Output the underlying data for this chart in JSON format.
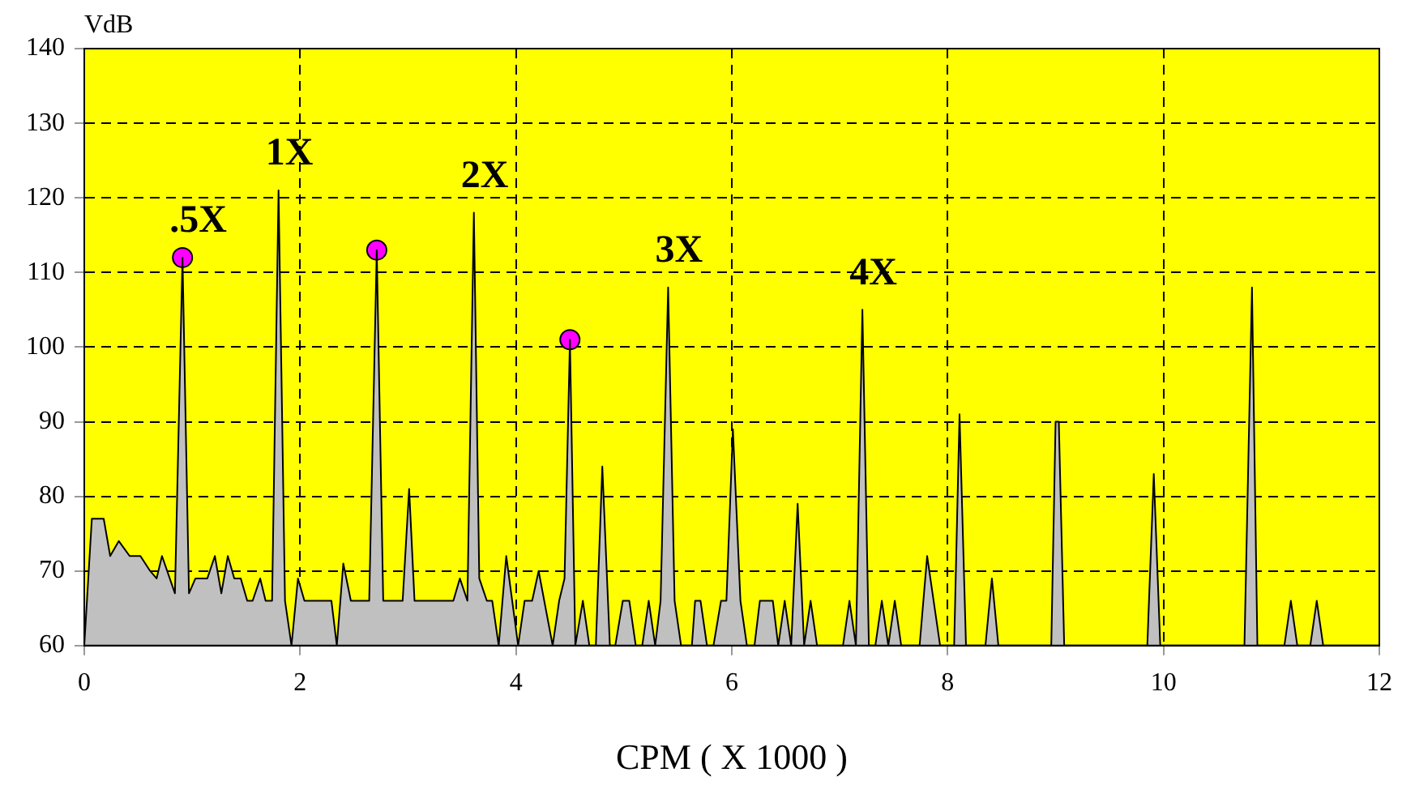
{
  "chart_data": {
    "type": "area",
    "xlabel": "CPM ( X 1000 )",
    "ylabel": "VdB",
    "xlim": [
      0,
      12
    ],
    "xticks": [
      0,
      2,
      4,
      6,
      8,
      10,
      12
    ],
    "ylim": [
      60,
      140
    ],
    "yticks": [
      60,
      70,
      80,
      90,
      100,
      110,
      120,
      130,
      140
    ],
    "grid": true,
    "legend": false,
    "series": [
      {
        "color": "#c0c0c0",
        "x": [
          0,
          0.07,
          0.18,
          0.24,
          0.32,
          0.42,
          0.52,
          0.61,
          0.67,
          0.72,
          0.84,
          0.91,
          0.97,
          1.03,
          1.14,
          1.21,
          1.27,
          1.33,
          1.39,
          1.45,
          1.51,
          1.56,
          1.63,
          1.68,
          1.74,
          1.8,
          1.86,
          1.92,
          1.98,
          2.04,
          2.29,
          2.34,
          2.4,
          2.47,
          2.64,
          2.71,
          2.77,
          2.95,
          3.01,
          3.06,
          3.42,
          3.48,
          3.55,
          3.61,
          3.66,
          3.73,
          3.78,
          3.84,
          3.91,
          4.02,
          4.08,
          4.15,
          4.21,
          4.34,
          4.4,
          4.45,
          4.5,
          4.55,
          4.62,
          4.68,
          4.74,
          4.8,
          4.87,
          4.92,
          4.99,
          5.05,
          5.11,
          5.17,
          5.23,
          5.29,
          5.34,
          5.41,
          5.47,
          5.53,
          5.63,
          5.66,
          5.71,
          5.77,
          5.83,
          5.9,
          5.95,
          6.01,
          6.08,
          6.14,
          6.21,
          6.26,
          6.38,
          6.43,
          6.49,
          6.55,
          6.61,
          6.67,
          6.73,
          6.79,
          7.03,
          7.09,
          7.15,
          7.21,
          7.27,
          7.33,
          7.39,
          7.45,
          7.51,
          7.57,
          7.74,
          7.81,
          7.93,
          8.06,
          8.11,
          8.17,
          8.35,
          8.41,
          8.47,
          8.96,
          9,
          9.03,
          9.08,
          9.85,
          9.91,
          9.97,
          10.75,
          10.82,
          10.87,
          11.12,
          11.18,
          11.24,
          11.36,
          11.42,
          11.48,
          12
        ],
        "values": [
          60,
          77,
          77,
          72,
          74,
          72,
          72,
          70,
          69,
          72,
          67,
          112,
          67,
          69,
          69,
          72,
          67,
          72,
          69,
          69,
          66,
          66,
          69,
          66,
          66,
          121,
          66,
          60,
          69,
          66,
          66,
          60,
          71,
          66,
          66,
          113,
          66,
          66,
          81,
          66,
          66,
          69,
          66,
          118,
          69,
          66,
          66,
          60,
          72,
          60,
          66,
          66,
          70,
          60,
          66,
          69,
          101,
          60,
          66,
          60,
          60,
          84,
          60,
          60,
          66,
          66,
          60,
          60,
          66,
          60,
          66,
          108,
          66,
          60,
          60,
          66,
          66,
          60,
          60,
          66,
          66,
          89,
          66,
          60,
          60,
          66,
          66,
          60,
          66,
          60,
          79,
          60,
          66,
          60,
          60,
          66,
          60,
          105,
          60,
          60,
          66,
          60,
          66,
          60,
          60,
          72,
          60,
          60,
          91,
          60,
          60,
          69,
          60,
          60,
          90,
          90,
          60,
          60,
          83,
          60,
          60,
          108,
          60,
          60,
          66,
          60,
          60,
          66,
          60,
          60
        ]
      },
      {
        "type": "scatter",
        "color": "#ff00ff",
        "marker": "circle",
        "x": [
          0.91,
          2.71,
          4.5
        ],
        "values": [
          112,
          113,
          101
        ]
      }
    ],
    "annotations": [
      {
        "text": ".5X",
        "x": 0.91,
        "y": 112
      },
      {
        "text": "1X",
        "x": 1.8,
        "y": 121
      },
      {
        "text": "2X",
        "x": 3.61,
        "y": 118
      },
      {
        "text": "3X",
        "x": 5.41,
        "y": 108
      },
      {
        "text": "4X",
        "x": 7.21,
        "y": 105
      }
    ]
  }
}
